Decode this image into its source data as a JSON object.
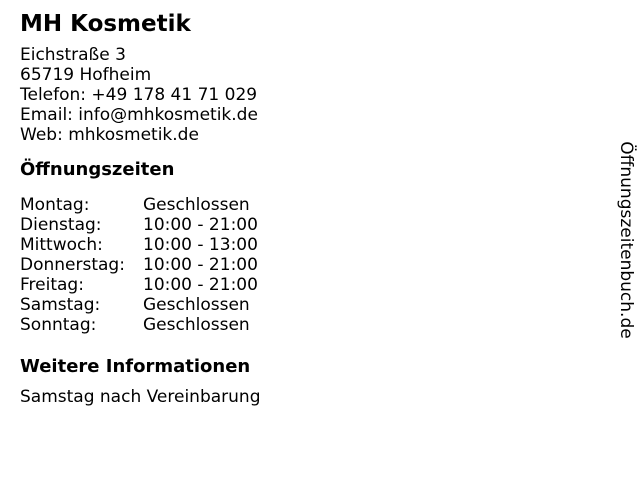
{
  "title": "MH Kosmetik",
  "contact": {
    "lines": [
      "Eichstraße 3",
      "65719 Hofheim",
      "Telefon: +49 178 41 71 029",
      "Email: info@mhkosmetik.de",
      "Web: mhkosmetik.de"
    ]
  },
  "hours": {
    "heading": "Öffnungszeiten",
    "rows": [
      {
        "day": "Montag:",
        "time": "Geschlossen"
      },
      {
        "day": "Dienstag:",
        "time": "10:00 - 21:00"
      },
      {
        "day": "Mittwoch:",
        "time": "10:00 - 13:00"
      },
      {
        "day": "Donnerstag:",
        "time": "10:00 - 21:00"
      },
      {
        "day": "Freitag:",
        "time": "10:00 - 21:00"
      },
      {
        "day": "Samstag:",
        "time": "Geschlossen"
      },
      {
        "day": "Sonntag:",
        "time": "Geschlossen"
      }
    ]
  },
  "more_info": {
    "heading": "Weitere Informationen",
    "text": "Samstag nach Vereinbarung"
  },
  "watermark": {
    "text": "Öffnungszeitenbuch.de"
  },
  "colors": {
    "text": "#000000",
    "background": "#ffffff"
  }
}
